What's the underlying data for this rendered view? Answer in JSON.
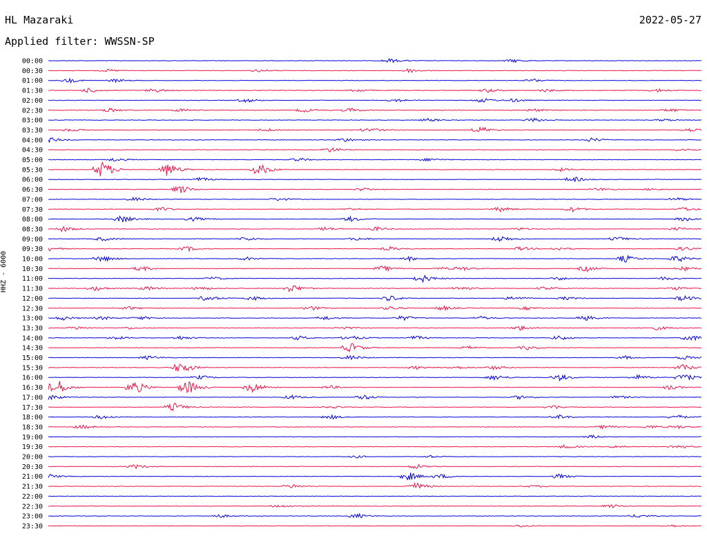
{
  "header": {
    "station": "HL Mazaraki",
    "date": "2022-05-27",
    "filter": "Applied filter: WWSSN-SP",
    "channel": "HHZ - 6000"
  },
  "colors": {
    "even": "#0000dd",
    "odd": "#ee1144",
    "text": "#000000"
  },
  "chart_data": {
    "type": "line",
    "title": "HL Mazaraki",
    "subtitle": "Applied filter: WWSSN-SP",
    "ylabel": "HHZ - 6000",
    "xlabel": "",
    "row_labels": [
      "00:00",
      "00:30",
      "01:00",
      "01:30",
      "02:00",
      "02:30",
      "03:00",
      "03:30",
      "04:00",
      "04:30",
      "05:00",
      "05:30",
      "06:00",
      "06:30",
      "07:00",
      "07:30",
      "08:00",
      "08:30",
      "09:00",
      "09:30",
      "10:00",
      "10:30",
      "11:00",
      "11:30",
      "12:00",
      "12:30",
      "13:00",
      "13:30",
      "14:00",
      "14:30",
      "15:00",
      "15:30",
      "16:00",
      "16:30",
      "17:00",
      "17:30",
      "18:00",
      "18:30",
      "19:00",
      "19:30",
      "20:00",
      "20:30",
      "21:00",
      "21:30",
      "22:00",
      "22:30",
      "23:00",
      "23:30"
    ],
    "series_colors": [
      "#0000dd",
      "#ee1144"
    ],
    "events": [
      [
        [
          0.52,
          0.5
        ],
        [
          0.71,
          0.4
        ]
      ],
      [
        [
          0.55,
          0.5
        ],
        [
          0.09,
          0.3
        ],
        [
          0.32,
          0.3
        ]
      ],
      [
        [
          0.03,
          0.5
        ],
        [
          0.1,
          0.4
        ],
        [
          0.74,
          0.4
        ]
      ],
      [
        [
          0.06,
          0.6
        ],
        [
          0.16,
          0.5
        ],
        [
          0.47,
          0.4
        ],
        [
          0.67,
          0.5
        ],
        [
          0.76,
          0.4
        ],
        [
          0.93,
          0.4
        ]
      ],
      [
        [
          0.3,
          0.5
        ],
        [
          0.53,
          0.4
        ],
        [
          0.66,
          0.6
        ],
        [
          0.71,
          0.4
        ]
      ],
      [
        [
          0.09,
          0.5
        ],
        [
          0.2,
          0.4
        ],
        [
          0.39,
          0.5
        ],
        [
          0.46,
          0.5
        ],
        [
          0.74,
          0.4
        ],
        [
          0.95,
          0.4
        ]
      ],
      [
        [
          0.58,
          0.4
        ],
        [
          0.74,
          0.5
        ],
        [
          0.94,
          0.3
        ]
      ],
      [
        [
          0.03,
          0.4
        ],
        [
          0.33,
          0.4
        ],
        [
          0.49,
          0.6
        ],
        [
          0.66,
          0.8
        ],
        [
          0.98,
          0.4
        ]
      ],
      [
        [
          0.0,
          0.6
        ],
        [
          0.45,
          0.5
        ],
        [
          0.83,
          0.5
        ]
      ],
      [
        [
          0.43,
          0.6
        ],
        [
          0.97,
          0.4
        ]
      ],
      [
        [
          0.1,
          0.5
        ],
        [
          0.38,
          0.4
        ],
        [
          0.58,
          0.4
        ]
      ],
      [
        [
          0.08,
          2.2
        ],
        [
          0.18,
          1.8
        ],
        [
          0.32,
          1.5
        ],
        [
          0.78,
          0.4
        ]
      ],
      [
        [
          0.23,
          0.5
        ],
        [
          0.8,
          0.7
        ]
      ],
      [
        [
          0.2,
          1.0
        ],
        [
          0.48,
          0.4
        ],
        [
          0.84,
          0.4
        ],
        [
          0.92,
          0.3
        ]
      ],
      [
        [
          0.13,
          0.5
        ],
        [
          0.35,
          0.4
        ],
        [
          0.96,
          0.4
        ]
      ],
      [
        [
          0.17,
          0.5
        ],
        [
          0.46,
          0.3
        ],
        [
          0.69,
          0.6
        ],
        [
          0.8,
          0.6
        ],
        [
          0.97,
          0.5
        ]
      ],
      [
        [
          0.11,
          0.9
        ],
        [
          0.22,
          0.5
        ],
        [
          0.46,
          0.6
        ],
        [
          0.97,
          0.5
        ]
      ],
      [
        [
          0.02,
          0.7
        ],
        [
          0.42,
          0.5
        ],
        [
          0.5,
          0.5
        ],
        [
          0.72,
          0.3
        ],
        [
          0.96,
          0.4
        ]
      ],
      [
        [
          0.08,
          0.5
        ],
        [
          0.3,
          0.5
        ],
        [
          0.47,
          0.4
        ],
        [
          0.69,
          0.8
        ],
        [
          0.87,
          0.5
        ]
      ],
      [
        [
          0.0,
          0.5
        ],
        [
          0.21,
          0.6
        ],
        [
          0.52,
          0.5
        ],
        [
          0.72,
          0.5
        ],
        [
          0.78,
          0.4
        ],
        [
          0.97,
          0.5
        ]
      ],
      [
        [
          0.08,
          0.8
        ],
        [
          0.3,
          0.4
        ],
        [
          0.55,
          0.5
        ],
        [
          0.88,
          0.9
        ],
        [
          0.96,
          0.8
        ]
      ],
      [
        [
          0.14,
          0.6
        ],
        [
          0.51,
          0.7
        ],
        [
          0.6,
          0.3
        ],
        [
          0.63,
          0.5
        ],
        [
          0.82,
          0.7
        ],
        [
          0.97,
          0.5
        ]
      ],
      [
        [
          0.25,
          0.4
        ],
        [
          0.57,
          1.0
        ],
        [
          0.78,
          0.4
        ],
        [
          0.94,
          0.4
        ]
      ],
      [
        [
          0.07,
          0.6
        ],
        [
          0.15,
          0.5
        ],
        [
          0.23,
          0.5
        ],
        [
          0.37,
          1.0
        ],
        [
          0.63,
          0.5
        ],
        [
          0.76,
          0.5
        ],
        [
          0.96,
          0.4
        ]
      ],
      [
        [
          0.24,
          0.7
        ],
        [
          0.31,
          0.5
        ],
        [
          0.52,
          0.7
        ],
        [
          0.71,
          0.5
        ],
        [
          0.79,
          0.4
        ],
        [
          0.97,
          0.7
        ]
      ],
      [
        [
          0.12,
          0.4
        ],
        [
          0.4,
          0.5
        ],
        [
          0.52,
          0.5
        ],
        [
          0.6,
          0.6
        ],
        [
          0.73,
          0.4
        ]
      ],
      [
        [
          0.02,
          0.5
        ],
        [
          0.08,
          0.4
        ],
        [
          0.14,
          0.4
        ],
        [
          0.42,
          0.5
        ],
        [
          0.54,
          0.6
        ],
        [
          0.66,
          0.4
        ],
        [
          0.82,
          0.6
        ]
      ],
      [
        [
          0.04,
          0.4
        ],
        [
          0.12,
          0.3
        ],
        [
          0.45,
          0.4
        ],
        [
          0.72,
          0.6
        ],
        [
          0.93,
          0.5
        ]
      ],
      [
        [
          0.1,
          0.4
        ],
        [
          0.2,
          0.5
        ],
        [
          0.38,
          0.5
        ],
        [
          0.46,
          0.6
        ],
        [
          0.56,
          0.5
        ],
        [
          0.78,
          0.6
        ],
        [
          0.98,
          0.8
        ]
      ],
      [
        [
          0.46,
          1.2
        ],
        [
          0.64,
          0.4
        ],
        [
          0.73,
          0.5
        ]
      ],
      [
        [
          0.15,
          0.5
        ],
        [
          0.46,
          0.6
        ],
        [
          0.88,
          0.4
        ],
        [
          0.97,
          0.5
        ]
      ],
      [
        [
          0.2,
          1.5
        ],
        [
          0.56,
          0.4
        ],
        [
          0.62,
          0.4
        ],
        [
          0.68,
          0.5
        ],
        [
          0.97,
          0.8
        ]
      ],
      [
        [
          0.23,
          0.5
        ],
        [
          0.68,
          0.7
        ],
        [
          0.78,
          0.8
        ],
        [
          0.9,
          0.6
        ],
        [
          0.97,
          0.9
        ]
      ],
      [
        [
          0.01,
          2.0
        ],
        [
          0.13,
          1.6
        ],
        [
          0.21,
          1.8
        ],
        [
          0.31,
          1.4
        ],
        [
          0.43,
          0.4
        ],
        [
          0.95,
          0.6
        ]
      ],
      [
        [
          0.0,
          0.8
        ],
        [
          0.37,
          0.5
        ],
        [
          0.48,
          0.6
        ],
        [
          0.72,
          0.5
        ],
        [
          0.87,
          0.4
        ]
      ],
      [
        [
          0.19,
          1.0
        ],
        [
          0.43,
          0.3
        ],
        [
          0.77,
          0.5
        ]
      ],
      [
        [
          0.08,
          0.5
        ],
        [
          0.43,
          0.5
        ],
        [
          0.78,
          0.5
        ],
        [
          0.96,
          0.5
        ]
      ],
      [
        [
          0.05,
          0.5
        ],
        [
          0.85,
          0.5
        ],
        [
          0.92,
          0.4
        ],
        [
          0.96,
          0.4
        ]
      ],
      [
        [
          0.83,
          0.4
        ]
      ],
      [
        [
          0.79,
          0.5
        ],
        [
          0.87,
          0.4
        ],
        [
          0.96,
          0.5
        ]
      ],
      [
        [
          0.47,
          0.3
        ],
        [
          0.58,
          0.3
        ]
      ],
      [
        [
          0.13,
          0.5
        ],
        [
          0.56,
          0.6
        ]
      ],
      [
        [
          0.0,
          0.5
        ],
        [
          0.55,
          1.0
        ],
        [
          0.6,
          0.5
        ],
        [
          0.78,
          0.6
        ]
      ],
      [
        [
          0.37,
          0.5
        ],
        [
          0.56,
          0.9
        ],
        [
          0.74,
          0.3
        ]
      ],
      [],
      [
        [
          0.35,
          0.4
        ],
        [
          0.86,
          0.4
        ]
      ],
      [
        [
          0.26,
          0.4
        ],
        [
          0.47,
          0.6
        ],
        [
          0.9,
          0.4
        ]
      ],
      [
        [
          0.72,
          0.3
        ],
        [
          0.95,
          0.3
        ]
      ]
    ]
  }
}
